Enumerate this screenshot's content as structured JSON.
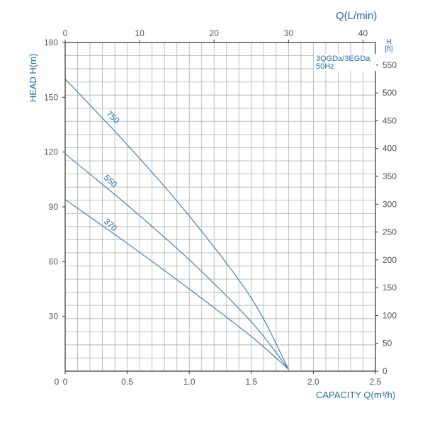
{
  "chart_data": {
    "type": "line",
    "legend": {
      "model": "3QGDa/3EGDa",
      "frequency": "50Hz"
    },
    "xlabel": "CAPACITY Q(m³/h)",
    "ylabel": "HEAD H(m)",
    "x2label": "Q(L/min)",
    "y2label_top": "H",
    "y2label_bottom": "[ft]",
    "xlim": [
      0,
      2.5
    ],
    "ylim": [
      0,
      180
    ],
    "x2lim": [
      0,
      41.67
    ],
    "y2lim": [
      0,
      590.55
    ],
    "grid": true,
    "x_ticks": [
      "0",
      "0.5",
      "1.0",
      "1.5",
      "2.0",
      "2.5"
    ],
    "y_ticks": [
      "30",
      "60",
      "90",
      "120",
      "150",
      "180"
    ],
    "x2_ticks": [
      "0",
      "10",
      "20",
      "30",
      "40"
    ],
    "y2_ticks": [
      "0",
      "50",
      "100",
      "150",
      "200",
      "250",
      "300",
      "350",
      "400",
      "450",
      "500",
      "550"
    ],
    "series": [
      {
        "name": "750",
        "x": [
          0,
          0.5,
          1.0,
          1.5,
          1.8
        ],
        "y": [
          160,
          124,
          85,
          40,
          1
        ]
      },
      {
        "name": "550",
        "x": [
          0,
          0.5,
          1.0,
          1.5,
          1.8
        ],
        "y": [
          119,
          91,
          61,
          27,
          1
        ]
      },
      {
        "name": "370",
        "x": [
          0,
          0.5,
          1.0,
          1.5,
          1.8
        ],
        "y": [
          94,
          70,
          45,
          19,
          1
        ]
      }
    ],
    "line_color": "#3a78b0",
    "axis_text_color": "#2a6aa8",
    "grid_color": "#b8b8b8"
  }
}
